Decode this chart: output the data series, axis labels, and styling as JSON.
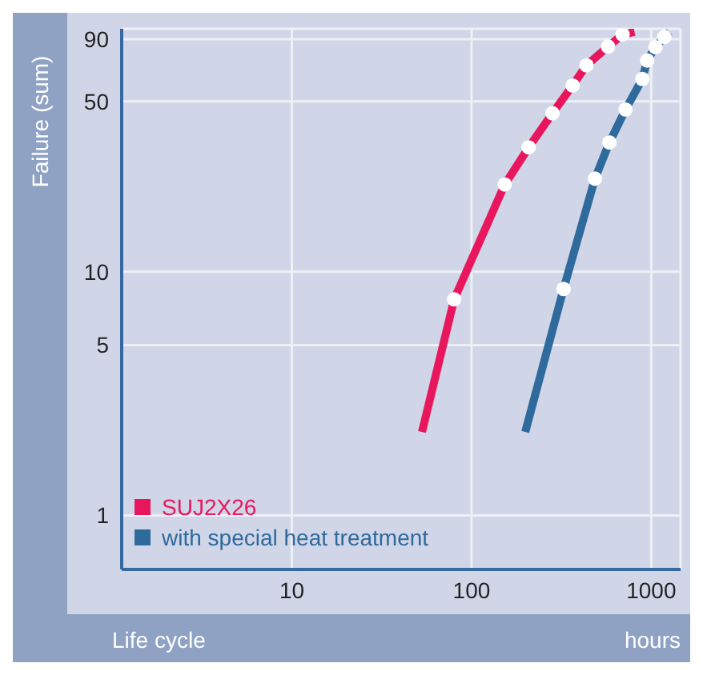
{
  "chart_data": {
    "type": "line",
    "xlabel": "Life cycle",
    "ylabel": "Failure (sum)",
    "annotations": [
      "hours"
    ],
    "log": "xy",
    "xlim": [
      1.13,
      1456
    ],
    "xticks": [
      10,
      100,
      1000
    ],
    "ylim": [
      0.6,
      99.3
    ],
    "yticks": [
      1,
      5,
      10,
      50,
      90
    ],
    "grid": true,
    "legend": "bottom left",
    "marker": "none",
    "line_style": "solid",
    "series": [
      {
        "name": "SUJ2X26",
        "color": "#e8175d",
        "x": [
          53,
          80,
          153,
          208,
          282,
          365,
          436,
          575,
          692,
          807
        ],
        "values": [
          2.2,
          7.7,
          22.8,
          32.4,
          44.7,
          58.1,
          70.3,
          83.9,
          94.1,
          96.4
        ]
      },
      {
        "type": "scatter",
        "marker": "circle",
        "color": "#ffffff",
        "x": [
          80,
          153,
          208,
          282,
          365,
          436,
          575,
          692
        ],
        "values": [
          7.7,
          22.8,
          32.4,
          44.7,
          58.1,
          70.3,
          83.9,
          94.1
        ]
      },
      {
        "name": "with special heat treatment",
        "color": "#2f6a9c",
        "x": [
          199,
          325,
          486,
          585,
          719,
          892,
          949,
          1055,
          1183,
          1262
        ],
        "values": [
          2.2,
          8.5,
          24.1,
          33.9,
          46.3,
          61.8,
          73.6,
          83.5,
          92.0,
          96.4
        ]
      },
      {
        "type": "scatter",
        "marker": "circle",
        "color": "#ffffff",
        "x": [
          325,
          486,
          585,
          719,
          892,
          949,
          1055,
          1183
        ],
        "values": [
          8.5,
          24.1,
          33.9,
          46.3,
          61.8,
          73.6,
          83.5,
          92.0
        ]
      }
    ]
  }
}
